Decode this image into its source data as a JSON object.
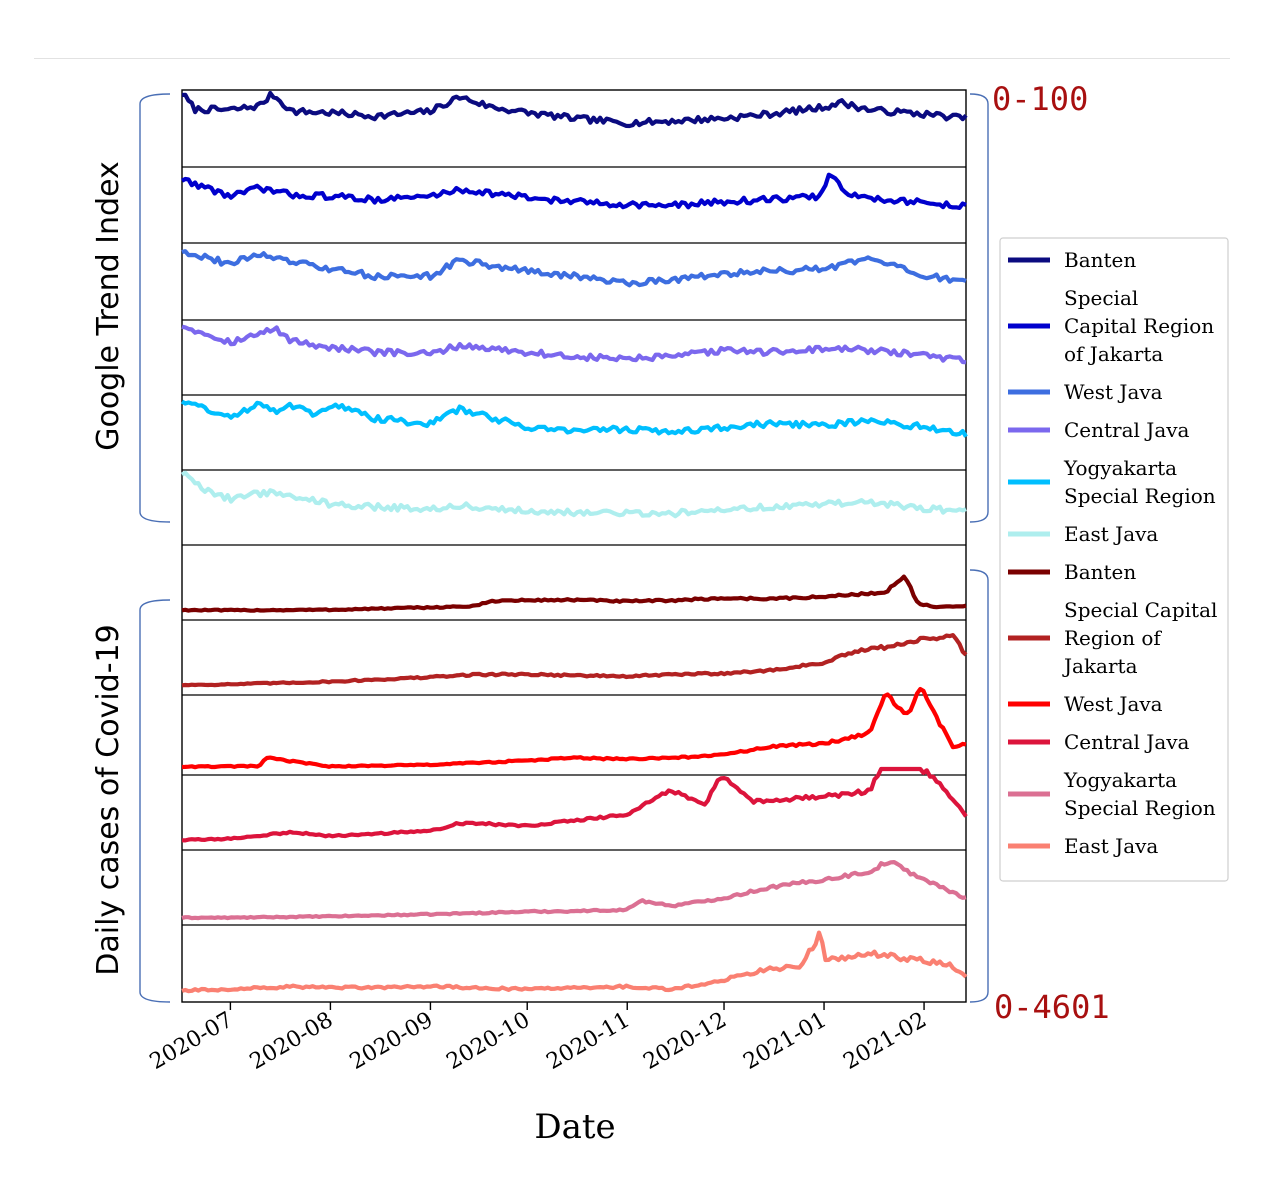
{
  "chart_data": {
    "type": "line",
    "xlabel": "Date",
    "x_tick_labels": [
      "2020-07",
      "2020-08",
      "2020-09",
      "2020-10",
      "2020-11",
      "2020-12",
      "2021-01",
      "2021-02"
    ],
    "x_range": [
      "2020-06-16",
      "2021-02-14"
    ],
    "layout": "stacked small-multiple line plot sharing one date axis",
    "grid": false,
    "legend_position": "right",
    "groups": [
      {
        "label": "Google Trend Index",
        "range_label": "0-100",
        "series": [
          {
            "name": "Banten",
            "color": "#0b0b80",
            "x": [
              "2020-06-16",
              "2020-06-20",
              "2020-07-01",
              "2020-07-10",
              "2020-07-14",
              "2020-07-20",
              "2020-08-01",
              "2020-08-15",
              "2020-09-01",
              "2020-09-10",
              "2020-09-20",
              "2020-10-01",
              "2020-10-15",
              "2020-11-01",
              "2020-11-15",
              "2020-12-01",
              "2020-12-15",
              "2021-01-01",
              "2021-01-06",
              "2021-01-15",
              "2021-02-01",
              "2021-02-14"
            ],
            "y": [
              98,
              75,
              74,
              80,
              97,
              72,
              70,
              65,
              72,
              93,
              78,
              70,
              62,
              55,
              58,
              62,
              68,
              78,
              85,
              74,
              68,
              62
            ]
          },
          {
            "name": "Special Capital Region of Jakarta",
            "color": "#0000cd",
            "x": [
              "2020-06-16",
              "2020-07-01",
              "2020-07-10",
              "2020-07-20",
              "2020-08-01",
              "2020-08-15",
              "2020-09-01",
              "2020-09-10",
              "2020-10-01",
              "2020-10-15",
              "2020-11-01",
              "2020-11-15",
              "2020-12-01",
              "2020-12-15",
              "2020-12-31",
              "2021-01-03",
              "2021-01-08",
              "2021-01-15",
              "2021-02-01",
              "2021-02-14"
            ],
            "y": [
              85,
              60,
              72,
              62,
              60,
              55,
              60,
              70,
              58,
              52,
              48,
              46,
              52,
              55,
              60,
              95,
              62,
              58,
              50,
              45
            ]
          },
          {
            "name": "West Java",
            "color": "#3d6ee0",
            "x": [
              "2020-06-16",
              "2020-07-01",
              "2020-07-10",
              "2020-07-15",
              "2020-08-01",
              "2020-08-15",
              "2020-09-01",
              "2020-09-10",
              "2020-10-01",
              "2020-10-15",
              "2020-11-01",
              "2020-11-15",
              "2020-12-01",
              "2020-12-15",
              "2021-01-01",
              "2021-01-15",
              "2021-02-01",
              "2021-02-14"
            ],
            "y": [
              92,
              72,
              88,
              80,
              65,
              55,
              55,
              78,
              62,
              55,
              45,
              50,
              58,
              62,
              65,
              80,
              55,
              48
            ]
          },
          {
            "name": "Central Java",
            "color": "#7b68ee",
            "x": [
              "2020-06-16",
              "2020-07-01",
              "2020-07-10",
              "2020-07-15",
              "2020-07-20",
              "2020-08-01",
              "2020-08-15",
              "2020-09-01",
              "2020-09-10",
              "2020-10-01",
              "2020-10-15",
              "2020-11-01",
              "2020-11-15",
              "2020-12-01",
              "2020-12-15",
              "2021-01-01",
              "2021-01-15",
              "2021-02-01",
              "2021-02-14"
            ],
            "y": [
              95,
              70,
              82,
              90,
              72,
              62,
              55,
              52,
              65,
              55,
              48,
              45,
              48,
              58,
              55,
              60,
              58,
              50,
              42
            ]
          },
          {
            "name": "Yogyakarta Special Region",
            "color": "#00bfff",
            "x": [
              "2020-06-16",
              "2020-06-25",
              "2020-07-01",
              "2020-07-10",
              "2020-07-15",
              "2020-07-20",
              "2020-07-28",
              "2020-08-01",
              "2020-08-15",
              "2020-09-01",
              "2020-09-10",
              "2020-10-01",
              "2020-10-15",
              "2020-11-01",
              "2020-11-15",
              "2020-12-01",
              "2020-12-15",
              "2021-01-01",
              "2021-01-15",
              "2021-02-01",
              "2021-02-14"
            ],
            "y": [
              95,
              80,
              68,
              92,
              80,
              88,
              72,
              90,
              68,
              60,
              82,
              55,
              50,
              52,
              48,
              55,
              60,
              58,
              65,
              55,
              45
            ]
          },
          {
            "name": "East Java",
            "color": "#aeeeee",
            "x": [
              "2020-06-16",
              "2020-06-25",
              "2020-07-01",
              "2020-07-10",
              "2020-07-15",
              "2020-08-01",
              "2020-08-15",
              "2020-09-01",
              "2020-09-10",
              "2020-10-01",
              "2020-10-15",
              "2020-11-01",
              "2020-11-15",
              "2020-12-01",
              "2020-12-15",
              "2021-01-01",
              "2021-01-15",
              "2021-02-01",
              "2021-02-14"
            ],
            "y": [
              98,
              68,
              60,
              68,
              70,
              52,
              48,
              45,
              50,
              42,
              40,
              38,
              38,
              45,
              48,
              52,
              55,
              45,
              42
            ]
          }
        ]
      },
      {
        "label": "Daily cases of Covid-19",
        "range_label": "0-4601",
        "series": [
          {
            "name": "Banten",
            "color": "#7a0000",
            "x": [
              "2020-06-16",
              "2020-07-01",
              "2020-08-01",
              "2020-09-01",
              "2020-09-15",
              "2020-09-20",
              "2020-10-01",
              "2020-10-15",
              "2020-11-01",
              "2020-11-15",
              "2020-12-01",
              "2020-12-15",
              "2021-01-01",
              "2021-01-10",
              "2021-01-20",
              "2021-01-26",
              "2021-01-30",
              "2021-02-05",
              "2021-02-14"
            ],
            "y": [
              150,
              140,
              160,
              250,
              300,
              500,
              520,
              540,
              480,
              520,
              600,
              580,
              650,
              750,
              800,
              1500,
              400,
              250,
              300
            ]
          },
          {
            "name": "Special Capital Region of Jakarta",
            "color": "#b22222",
            "x": [
              "2020-06-16",
              "2020-07-01",
              "2020-08-01",
              "2020-09-01",
              "2020-09-15",
              "2020-10-01",
              "2020-10-15",
              "2020-11-01",
              "2020-11-15",
              "2020-12-01",
              "2020-12-15",
              "2021-01-01",
              "2021-01-10",
              "2021-01-20",
              "2021-02-01",
              "2021-02-10",
              "2021-02-14"
            ],
            "y": [
              150,
              180,
              280,
              450,
              550,
              560,
              520,
              480,
              550,
              600,
              700,
              1000,
              1400,
              1600,
              1900,
              2000,
              1300
            ]
          },
          {
            "name": "West Java",
            "color": "#ff0000",
            "x": [
              "2020-06-16",
              "2020-07-01",
              "2020-07-10",
              "2020-07-12",
              "2020-08-01",
              "2020-09-01",
              "2020-10-01",
              "2020-10-15",
              "2020-11-01",
              "2020-11-15",
              "2020-12-01",
              "2020-12-15",
              "2021-01-01",
              "2021-01-15",
              "2021-01-20",
              "2021-01-27",
              "2021-01-31",
              "2021-02-05",
              "2021-02-10",
              "2021-02-14"
            ],
            "y": [
              80,
              90,
              100,
              400,
              90,
              150,
              300,
              400,
              350,
              400,
              500,
              800,
              900,
              1300,
              2700,
              1900,
              3000,
              1800,
              800,
              900
            ]
          },
          {
            "name": "Central Java",
            "color": "#dc143c",
            "x": [
              "2020-06-16",
              "2020-07-01",
              "2020-07-20",
              "2020-08-01",
              "2020-09-01",
              "2020-09-10",
              "2020-10-01",
              "2020-10-15",
              "2020-11-01",
              "2020-11-10",
              "2020-11-15",
              "2020-11-25",
              "2020-11-30",
              "2020-12-10",
              "2020-12-20",
              "2021-01-01",
              "2021-01-15",
              "2021-01-20",
              "2021-02-01",
              "2021-02-05",
              "2021-02-14"
            ],
            "y": [
              150,
              200,
              450,
              300,
              500,
              800,
              700,
              900,
              1100,
              1800,
              2000,
              1500,
              2600,
              1600,
              1700,
              1800,
              2000,
              3200,
              2800,
              2400,
              1100
            ]
          },
          {
            "name": "Yogyakarta Special Region",
            "color": "#db7093",
            "x": [
              "2020-06-16",
              "2020-07-01",
              "2020-08-01",
              "2020-09-01",
              "2020-10-01",
              "2020-10-15",
              "2020-11-01",
              "2020-11-05",
              "2020-11-15",
              "2020-12-01",
              "2020-12-15",
              "2021-01-01",
              "2021-01-15",
              "2021-01-21",
              "2021-02-01",
              "2021-02-10",
              "2021-02-14"
            ],
            "y": [
              50,
              50,
              100,
              180,
              280,
              300,
              350,
              700,
              500,
              800,
              1200,
              1500,
              1800,
              2200,
              1500,
              1000,
              800
            ]
          },
          {
            "name": "East Java",
            "color": "#fa8072",
            "x": [
              "2020-06-16",
              "2020-07-01",
              "2020-07-20",
              "2020-08-01",
              "2020-09-01",
              "2020-09-15",
              "2020-10-01",
              "2020-10-15",
              "2020-11-01",
              "2020-11-15",
              "2020-12-01",
              "2020-12-15",
              "2020-12-25",
              "2020-12-31",
              "2021-01-01",
              "2021-01-15",
              "2021-02-01",
              "2021-02-10",
              "2021-02-14"
            ],
            "y": [
              200,
              250,
              350,
              300,
              350,
              300,
              250,
              300,
              350,
              250,
              600,
              1000,
              1100,
              2400,
              1300,
              1600,
              1300,
              1100,
              700
            ]
          }
        ]
      }
    ]
  }
}
